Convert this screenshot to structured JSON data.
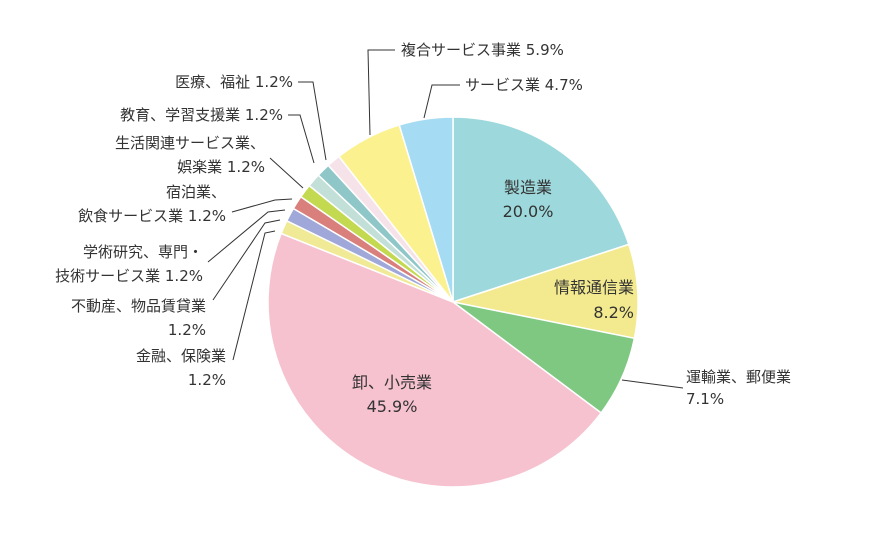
{
  "chart_data": {
    "type": "pie",
    "title": "",
    "start_angle_deg": 0,
    "direction": "clockwise",
    "slices": [
      {
        "label": "製造業",
        "value": 20.0,
        "value_text": "20.0%",
        "color": "#9dd9dc",
        "label_placement": "inside"
      },
      {
        "label": "情報通信業",
        "value": 8.2,
        "value_text": "8.2%",
        "color": "#f3ea8f",
        "label_placement": "inside"
      },
      {
        "label": "運輸業、郵便業",
        "value": 7.1,
        "value_text": "7.1%",
        "color": "#7ec882",
        "label_placement": "outside"
      },
      {
        "label": "卸、小売業",
        "value": 45.9,
        "value_text": "45.9%",
        "color": "#f6c2cf",
        "label_placement": "inside"
      },
      {
        "label": "金融、保険業",
        "value": 1.2,
        "value_text": "1.2%",
        "color": "#f0ea96",
        "label_placement": "outside"
      },
      {
        "label": "不動産、物品賃貸業",
        "value": 1.2,
        "value_text": "1.2%",
        "color": "#9fa8d8",
        "label_placement": "outside"
      },
      {
        "label": "学術研究、専門・技術サービス業",
        "value": 1.2,
        "value_text": "1.2%",
        "color": "#d97f7c",
        "label_placement": "outside"
      },
      {
        "label": "宿泊業、飲食サービス業",
        "value": 1.2,
        "value_text": "1.2%",
        "color": "#c3d94f",
        "label_placement": "outside"
      },
      {
        "label": "生活関連サービス業、娯楽業",
        "value": 1.2,
        "value_text": "1.2%",
        "color": "#c2e0d8",
        "label_placement": "outside"
      },
      {
        "label": "教育、学習支援業",
        "value": 1.2,
        "value_text": "1.2%",
        "color": "#8fc7c9",
        "label_placement": "outside"
      },
      {
        "label": "医療、福祉",
        "value": 1.2,
        "value_text": "1.2%",
        "color": "#f6e3ea",
        "label_placement": "outside"
      },
      {
        "label": "複合サービス事業",
        "value": 5.9,
        "value_text": "5.9%",
        "color": "#fbf18e",
        "label_placement": "outside"
      },
      {
        "label": "サービス業",
        "value": 4.7,
        "value_text": "4.7%",
        "color": "#a6dcf3",
        "label_placement": "outside"
      }
    ]
  },
  "labels": {
    "manufacturing_name": "製造業",
    "manufacturing_value": "20.0%",
    "ict_name": "情報通信業",
    "ict_value": "8.2%",
    "transport": "運輸業、郵便業",
    "transport_value": "7.1%",
    "retail_name": "卸、小売業",
    "retail_value": "45.9%",
    "finance": "金融、保険業",
    "finance_value": "1.2%",
    "realestate": "不動産、物品賃貸業",
    "realestate_value": "1.2%",
    "research_line1": "学術研究、専門・",
    "research_line2": "技術サービス業 1.2%",
    "lodging_line1": "宿泊業、",
    "lodging_line2": "飲食サービス業 1.2%",
    "lifestyle_line1": "生活関連サービス業、",
    "lifestyle_line2": "娯楽業 1.2%",
    "education": "教育、学習支援業 1.2%",
    "medical": "医療、福祉 1.2%",
    "compound": "複合サービス事業 5.9%",
    "services": "サービス業 4.7%"
  }
}
